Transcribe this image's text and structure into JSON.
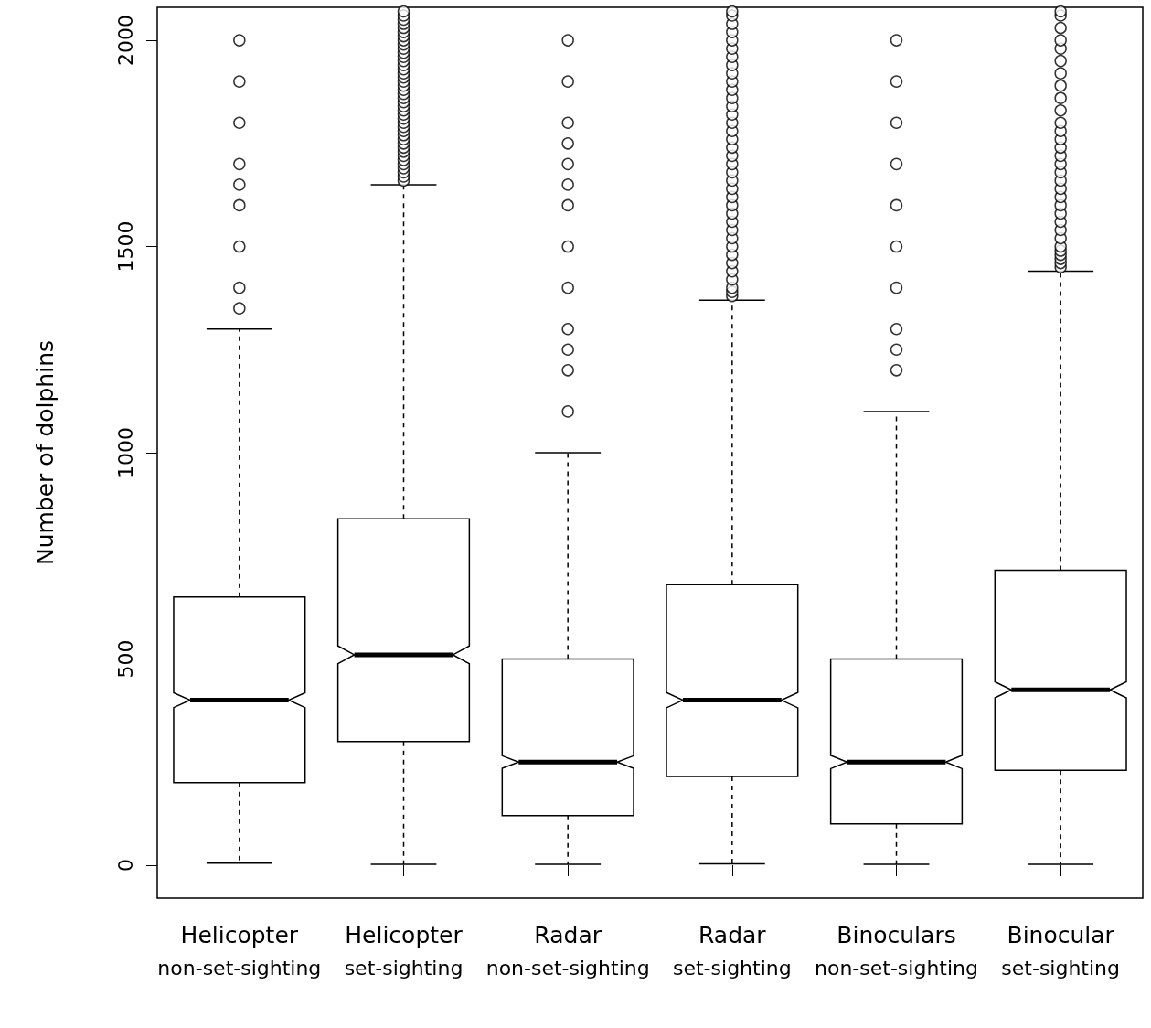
{
  "chart_data": {
    "type": "box",
    "ylabel": "Number of dolphins",
    "categories": [
      "Helicopter\nnon-set-sighting",
      "Helicopter\nset-sighting",
      "Radar\nnon-set-sighting",
      "Radar\nset-sighting",
      "Binoculars\nnon-set-sighting",
      "Binocular\nset-sighting"
    ],
    "boxes": [
      {
        "low": 5,
        "q1": 200,
        "median": 400,
        "q3": 650,
        "high": 1300,
        "outliers": [
          1350,
          1400,
          1500,
          1600,
          1650,
          1700,
          1800,
          1900,
          2000
        ]
      },
      {
        "low": 2,
        "q1": 300,
        "median": 510,
        "q3": 840,
        "high": 1650,
        "outliers": [
          1660,
          1670,
          1680,
          1690,
          1700,
          1710,
          1720,
          1730,
          1740,
          1750,
          1760,
          1770,
          1780,
          1790,
          1800,
          1810,
          1820,
          1830,
          1840,
          1850,
          1860,
          1870,
          1880,
          1890,
          1900,
          1910,
          1920,
          1930,
          1940,
          1950,
          1960,
          1970,
          1980,
          1990,
          2000,
          2010,
          2020,
          2030,
          2040,
          2050,
          2060,
          2070
        ]
      },
      {
        "low": 2,
        "q1": 120,
        "median": 250,
        "q3": 500,
        "high": 1000,
        "outliers": [
          1100,
          1200,
          1250,
          1300,
          1400,
          1500,
          1600,
          1650,
          1700,
          1750,
          1800,
          1900,
          2000
        ]
      },
      {
        "low": 3,
        "q1": 215,
        "median": 400,
        "q3": 680,
        "high": 1370,
        "outliers": [
          1380,
          1390,
          1400,
          1420,
          1440,
          1460,
          1480,
          1500,
          1520,
          1540,
          1560,
          1580,
          1600,
          1620,
          1640,
          1660,
          1680,
          1700,
          1720,
          1740,
          1760,
          1780,
          1800,
          1820,
          1840,
          1860,
          1880,
          1900,
          1920,
          1940,
          1960,
          1980,
          2000,
          2020,
          2040,
          2060,
          2070
        ]
      },
      {
        "low": 2,
        "q1": 100,
        "median": 250,
        "q3": 500,
        "high": 1100,
        "outliers": [
          1200,
          1250,
          1300,
          1400,
          1500,
          1600,
          1700,
          1800,
          1900,
          2000
        ]
      },
      {
        "low": 2,
        "q1": 230,
        "median": 425,
        "q3": 715,
        "high": 1440,
        "outliers": [
          1450,
          1460,
          1470,
          1480,
          1490,
          1500,
          1520,
          1540,
          1560,
          1580,
          1600,
          1620,
          1640,
          1660,
          1680,
          1700,
          1720,
          1740,
          1760,
          1780,
          1800,
          1830,
          1860,
          1890,
          1920,
          1950,
          1980,
          2000,
          2030,
          2060,
          2070
        ]
      }
    ],
    "color": "#000000",
    "ylim": [
      -80,
      2080
    ],
    "yticks": [
      0,
      500,
      1000,
      1500,
      2000
    ],
    "grid": false
  }
}
